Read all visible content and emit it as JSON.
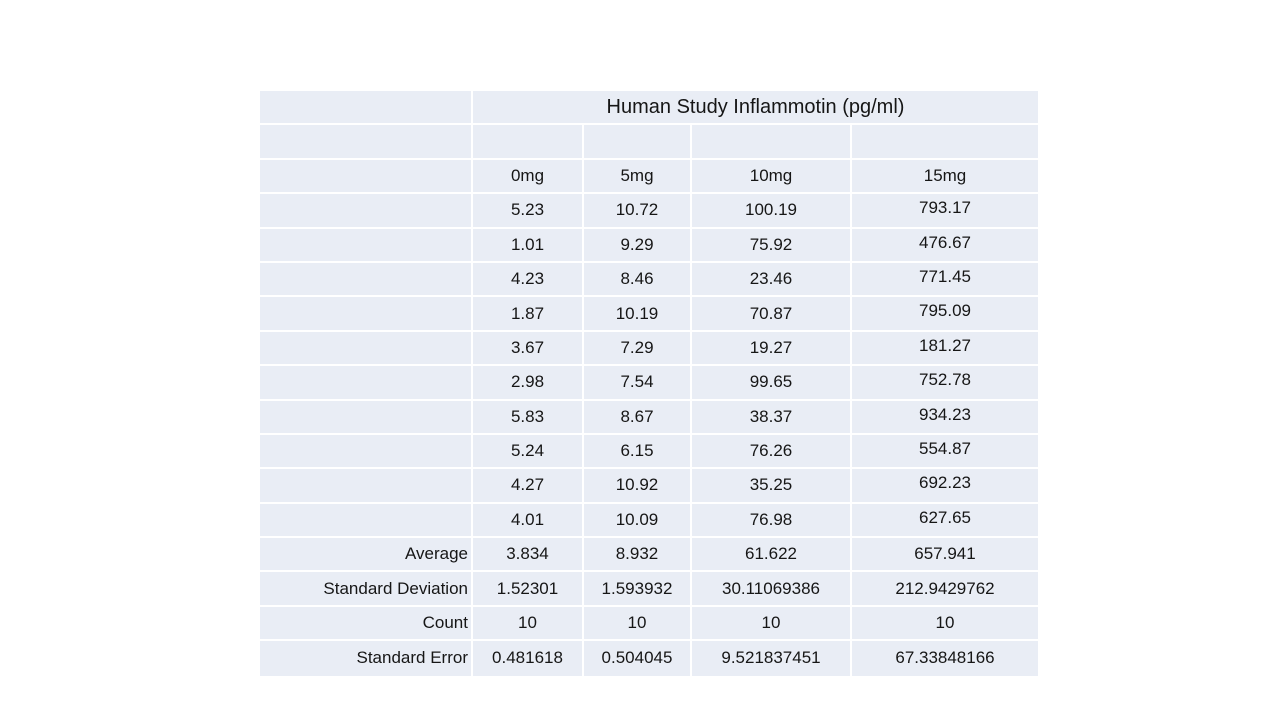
{
  "table": {
    "title": "Human Study Inflammotin (pg/ml)",
    "columns": [
      "0mg",
      "5mg",
      "10mg",
      "15mg"
    ],
    "data_rows": [
      [
        "5.23",
        "10.72",
        "100.19",
        "793.17"
      ],
      [
        "1.01",
        "9.29",
        "75.92",
        "476.67"
      ],
      [
        "4.23",
        "8.46",
        "23.46",
        "771.45"
      ],
      [
        "1.87",
        "10.19",
        "70.87",
        "795.09"
      ],
      [
        "3.67",
        "7.29",
        "19.27",
        "181.27"
      ],
      [
        "2.98",
        "7.54",
        "99.65",
        "752.78"
      ],
      [
        "5.83",
        "8.67",
        "38.37",
        "934.23"
      ],
      [
        "5.24",
        "6.15",
        "76.26",
        "554.87"
      ],
      [
        "4.27",
        "10.92",
        "35.25",
        "692.23"
      ],
      [
        "4.01",
        "10.09",
        "76.98",
        "627.65"
      ]
    ],
    "stat_rows": [
      {
        "label": "Average",
        "values": [
          "3.834",
          "8.932",
          "61.622",
          "657.941"
        ]
      },
      {
        "label": "Standard Deviation",
        "values": [
          "1.52301",
          "1.593932",
          "30.11069386",
          "212.9429762"
        ]
      },
      {
        "label": "Count",
        "values": [
          "10",
          "10",
          "10",
          "10"
        ]
      },
      {
        "label": "Standard Error",
        "values": [
          "0.481618",
          "0.504045",
          "9.521837451",
          "67.33848166"
        ]
      }
    ]
  },
  "colors": {
    "cell_fill": "#e9edf5",
    "gridline": "#ffffff",
    "text": "#161616",
    "background": "#ffffff"
  }
}
